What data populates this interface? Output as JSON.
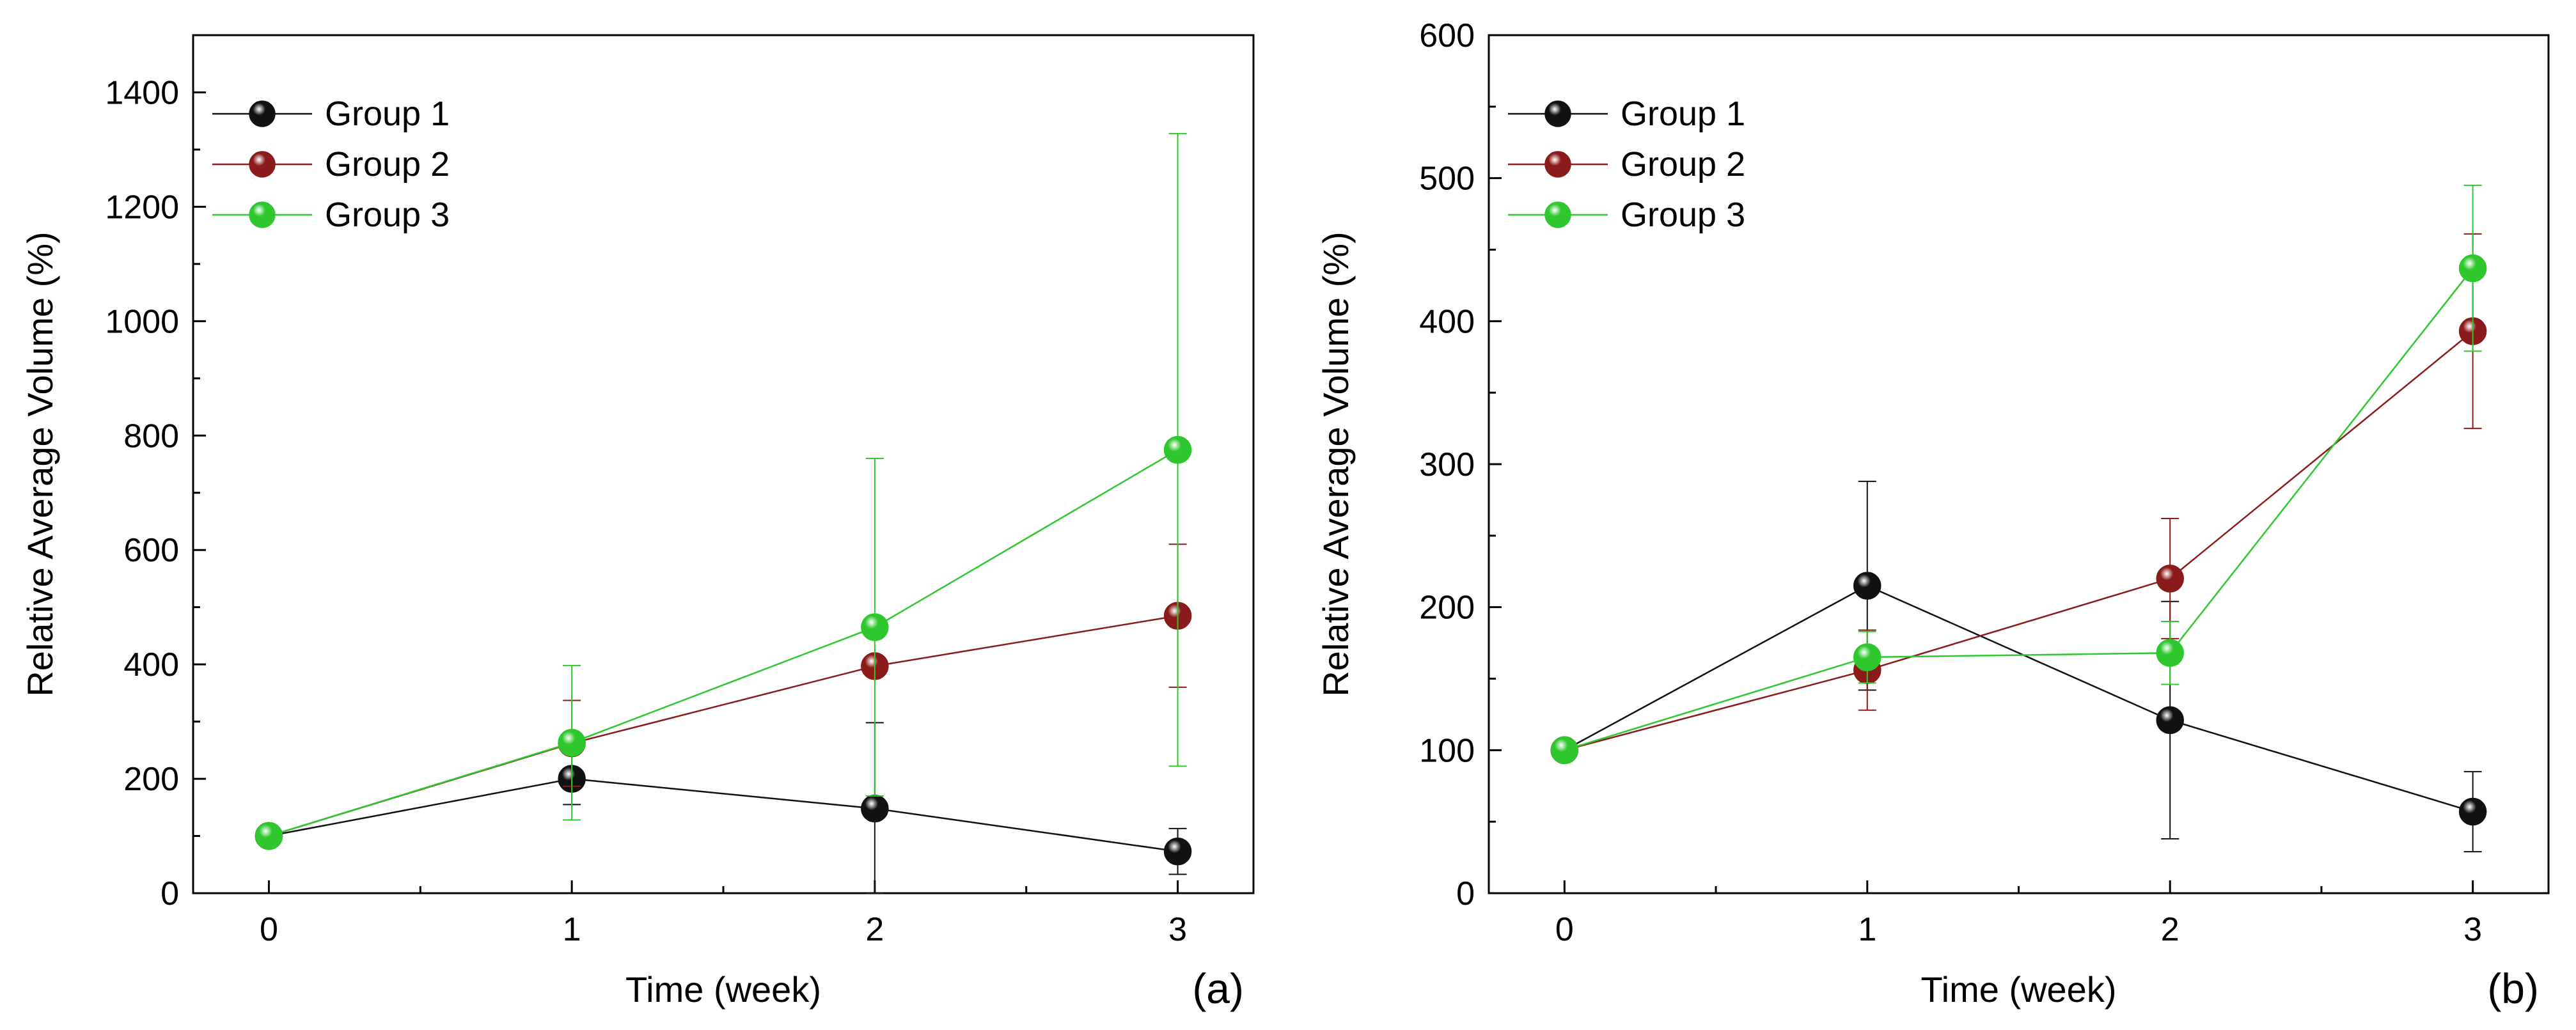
{
  "colors": {
    "group1": "#111111",
    "group2": "#8b1a1a",
    "group3": "#2ec82e",
    "axis": "#000000"
  },
  "chart_data": [
    {
      "type": "line",
      "panel_label": "(a)",
      "xlabel": "Time (week)",
      "ylabel": "Relative Average Volume (%)",
      "xlim": [
        -0.25,
        3.25
      ],
      "ylim": [
        0,
        1500
      ],
      "x_ticks": [
        0,
        1,
        2,
        3
      ],
      "x_tick_labels": [
        "0",
        "1",
        "2",
        "3"
      ],
      "y_ticks": [
        0,
        200,
        400,
        600,
        800,
        1000,
        1200,
        1400
      ],
      "y_tick_labels": [
        "0",
        "200",
        "400",
        "600",
        "800",
        "1000",
        "1200",
        "1400"
      ],
      "legend_position": "top-left",
      "x": [
        0,
        1,
        2,
        3
      ],
      "series": [
        {
          "name": "Group 1",
          "color_key": "group1",
          "values": [
            100,
            200,
            148,
            73
          ],
          "error": [
            0,
            45,
            150,
            40
          ]
        },
        {
          "name": "Group 2",
          "color_key": "group2",
          "values": [
            100,
            262,
            397,
            485
          ],
          "error": [
            0,
            75,
            0,
            125
          ]
        },
        {
          "name": "Group 3",
          "color_key": "group3",
          "values": [
            100,
            263,
            465,
            775
          ],
          "error": [
            0,
            135,
            295,
            553
          ]
        }
      ]
    },
    {
      "type": "line",
      "panel_label": "(b)",
      "xlabel": "Time (week)",
      "ylabel": "Relative Average Volume (%)",
      "xlim": [
        -0.25,
        3.25
      ],
      "ylim": [
        0,
        600
      ],
      "x_ticks": [
        0,
        1,
        2,
        3
      ],
      "x_tick_labels": [
        "0",
        "1",
        "2",
        "3"
      ],
      "y_ticks": [
        0,
        100,
        200,
        300,
        400,
        500,
        600
      ],
      "y_tick_labels": [
        "0",
        "100",
        "200",
        "300",
        "400",
        "500",
        "600"
      ],
      "legend_position": "top-left",
      "x": [
        0,
        1,
        2,
        3
      ],
      "series": [
        {
          "name": "Group 1",
          "color_key": "group1",
          "values": [
            100,
            215,
            121,
            57
          ],
          "error": [
            0,
            73,
            83,
            28
          ]
        },
        {
          "name": "Group 2",
          "color_key": "group2",
          "values": [
            100,
            156,
            220,
            393
          ],
          "error": [
            0,
            28,
            42,
            68
          ]
        },
        {
          "name": "Group 3",
          "color_key": "group3",
          "values": [
            100,
            165,
            168,
            437
          ],
          "error": [
            0,
            18,
            22,
            58
          ]
        }
      ]
    }
  ]
}
